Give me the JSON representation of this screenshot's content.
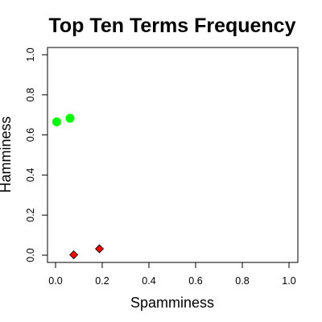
{
  "chart_data": {
    "type": "scatter",
    "title": "Top Ten Terms Frequency",
    "xlabel": "Spamminess",
    "ylabel": "Hamminess",
    "xlim": [
      0,
      1
    ],
    "ylim": [
      0,
      1
    ],
    "xticks": [
      "0.0",
      "0.2",
      "0.4",
      "0.6",
      "0.8",
      "1.0"
    ],
    "yticks": [
      "0.0",
      "0.2",
      "0.4",
      "0.6",
      "0.8",
      "1.0"
    ],
    "grid": false,
    "legend": "none",
    "series": [
      {
        "marker": "circle",
        "color": "#00ff00",
        "points": [
          {
            "x": 0.005,
            "y": 0.665
          },
          {
            "x": 0.062,
            "y": 0.683
          }
        ]
      },
      {
        "marker": "diamond",
        "color": "#ff0000",
        "points": [
          {
            "x": 0.078,
            "y": 0.002
          },
          {
            "x": 0.188,
            "y": 0.032
          }
        ]
      }
    ]
  }
}
